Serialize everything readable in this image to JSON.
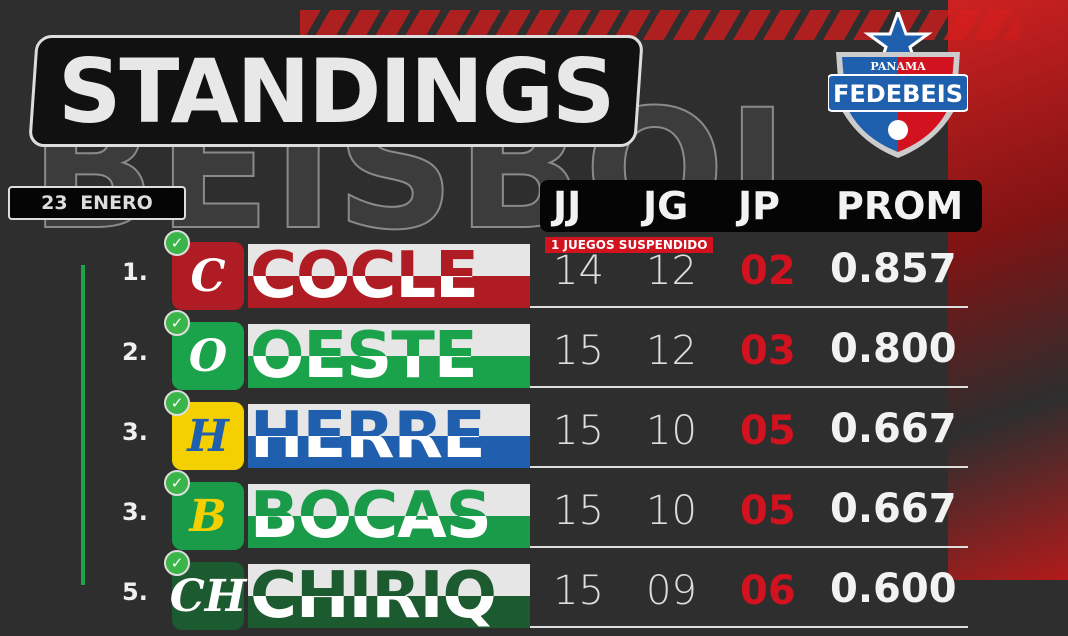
{
  "title": "STANDINGS",
  "background_word": "BEISBOL",
  "date": "23 ENERO",
  "logo": {
    "top": "PANAMA",
    "name": "FEDEBEIS"
  },
  "columns": [
    "JJ",
    "JG",
    "JP",
    "PROM"
  ],
  "note": "1 JUEGOS SUSPENDIDO",
  "colors": {
    "accent_red": "#d2121e",
    "check_green": "#3bb54a"
  },
  "teams": [
    {
      "rank": "1.",
      "name": "COCLE",
      "logo_letter": "C",
      "color": "#b01c24",
      "jj": "14",
      "jg": "12",
      "jp": "02",
      "prom": "0.857",
      "clinched": true
    },
    {
      "rank": "2.",
      "name": "OESTE",
      "logo_letter": "O",
      "color": "#1aa34a",
      "jj": "15",
      "jg": "12",
      "jp": "03",
      "prom": "0.800",
      "clinched": true
    },
    {
      "rank": "3.",
      "name": "HERRE",
      "logo_letter": "H",
      "color": "#1f5fae",
      "jj": "15",
      "jg": "10",
      "jp": "05",
      "prom": "0.667",
      "clinched": true
    },
    {
      "rank": "3.",
      "name": "BOCAS",
      "logo_letter": "B",
      "color": "#1a9b4a",
      "jj": "15",
      "jg": "10",
      "jp": "05",
      "prom": "0.667",
      "clinched": true
    },
    {
      "rank": "5.",
      "name": "CHIRIQ",
      "logo_letter": "CH",
      "color": "#1c5a30",
      "jj": "15",
      "jg": "09",
      "jp": "06",
      "prom": "0.600",
      "clinched": true
    }
  ]
}
